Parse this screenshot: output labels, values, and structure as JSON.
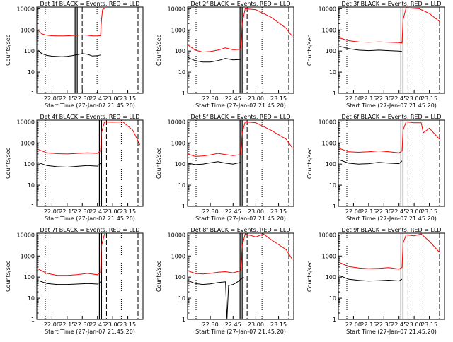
{
  "chart_data": [
    {
      "type": "line",
      "title": "Det 1f BLACK = Events, RED = LLD",
      "xlabel": "Start Time (27-Jan-07 21:45:20)",
      "ylabel": "Counts/sec",
      "xlim": [
        "21:45",
        "23:30"
      ],
      "ylim": [
        1,
        12000
      ],
      "yscale": "log",
      "ytick_labels": [
        "1",
        "10",
        "100",
        "1000",
        "10000"
      ],
      "xtick_labels": [
        "22:00",
        "22:15",
        "22:30",
        "22:45",
        "23:00",
        "23:15"
      ],
      "series": [
        {
          "name": "BLACK = Events",
          "color": "#000000",
          "x": [
            "21:46",
            "21:50",
            "21:55",
            "22:00",
            "22:05",
            "22:10",
            "22:15",
            "22:20",
            "22:25",
            "22:30",
            "22:35",
            "22:40",
            "22:45",
            "22:48"
          ],
          "values": [
            110,
            75,
            62,
            57,
            55,
            54,
            56,
            60,
            67,
            75,
            70,
            58,
            60,
            65
          ]
        },
        {
          "name": "RED = LLD",
          "color": "#ff0000",
          "x": [
            "21:46",
            "21:50",
            "21:55",
            "22:00",
            "22:05",
            "22:10",
            "22:15",
            "22:20",
            "22:25",
            "22:30",
            "22:35",
            "22:40",
            "22:45",
            "22:48",
            "22:49",
            "22:50",
            "22:53"
          ],
          "values": [
            1000,
            650,
            560,
            530,
            520,
            520,
            525,
            540,
            560,
            580,
            560,
            520,
            520,
            540,
            3000,
            9000,
            11000
          ]
        }
      ]
    },
    {
      "type": "line",
      "title": "Det 2f BLACK = Events, RED = LLD",
      "xlabel": "Start Time (27-Jan-07 21:45:20)",
      "ylabel": "Counts/sec",
      "xlim": [
        "22:15",
        "23:25"
      ],
      "ylim": [
        1,
        12000
      ],
      "yscale": "log",
      "ytick_labels": [
        "1",
        "10",
        "100",
        "1000",
        "10000"
      ],
      "xtick_labels": [
        "22:30",
        "22:45",
        "23:00",
        "23:15"
      ],
      "series": [
        {
          "name": "BLACK = Events",
          "color": "#000000",
          "x": [
            "22:15",
            "22:20",
            "22:25",
            "22:30",
            "22:35",
            "22:40",
            "22:45",
            "22:50"
          ],
          "values": [
            50,
            35,
            30,
            30,
            35,
            45,
            38,
            40
          ]
        },
        {
          "name": "RED = LLD",
          "color": "#ff0000",
          "x": [
            "22:15",
            "22:20",
            "22:25",
            "22:30",
            "22:35",
            "22:40",
            "22:45",
            "22:50",
            "22:51",
            "22:53",
            "23:00",
            "23:10",
            "23:20",
            "23:24"
          ],
          "values": [
            200,
            110,
            90,
            95,
            110,
            140,
            115,
            120,
            2000,
            10000,
            9000,
            4000,
            1200,
            500
          ]
        }
      ]
    },
    {
      "type": "line",
      "title": "Det 3f BLACK = Events, RED = LLD",
      "xlabel": "Start Time (27-Jan-07 21:45:20)",
      "ylabel": "Counts/sec",
      "xlim": [
        "21:45",
        "23:30"
      ],
      "ylim": [
        1,
        12000
      ],
      "yscale": "log",
      "ytick_labels": [
        "1",
        "10",
        "100",
        "1000",
        "10000"
      ],
      "xtick_labels": [
        "22:00",
        "22:15",
        "22:30",
        "22:45",
        "23:00",
        "23:15"
      ],
      "series": [
        {
          "name": "BLACK = Events",
          "color": "#000000",
          "x": [
            "21:46",
            "21:55",
            "22:05",
            "22:15",
            "22:25",
            "22:35",
            "22:45",
            "22:48"
          ],
          "values": [
            170,
            130,
            110,
            105,
            110,
            105,
            100,
            95
          ]
        },
        {
          "name": "RED = LLD",
          "color": "#ff0000",
          "x": [
            "21:46",
            "21:55",
            "22:05",
            "22:15",
            "22:25",
            "22:35",
            "22:45",
            "22:48",
            "22:49",
            "22:52",
            "23:05",
            "23:15",
            "23:25"
          ],
          "values": [
            420,
            310,
            270,
            260,
            270,
            260,
            250,
            240,
            3000,
            11000,
            10000,
            6000,
            2500
          ]
        }
      ]
    },
    {
      "type": "line",
      "title": "Det 4f BLACK = Events, RED = LLD",
      "xlabel": "Start Time (27-Jan-07 21:45:20)",
      "ylabel": "Counts/sec",
      "xlim": [
        "21:45",
        "23:30"
      ],
      "ylim": [
        1,
        12000
      ],
      "yscale": "log",
      "ytick_labels": [
        "1",
        "10",
        "100",
        "1000",
        "10000"
      ],
      "xtick_labels": [
        "22:00",
        "22:15",
        "22:30",
        "22:45",
        "23:00",
        "23:15"
      ],
      "series": [
        {
          "name": "BLACK = Events",
          "color": "#000000",
          "x": [
            "21:46",
            "21:55",
            "22:05",
            "22:15",
            "22:25",
            "22:35",
            "22:45",
            "22:48"
          ],
          "values": [
            120,
            85,
            75,
            72,
            78,
            85,
            80,
            110
          ]
        },
        {
          "name": "RED = LLD",
          "color": "#ff0000",
          "x": [
            "21:46",
            "21:55",
            "22:05",
            "22:15",
            "22:25",
            "22:35",
            "22:45",
            "22:48",
            "22:49",
            "22:52",
            "23:00",
            "23:10",
            "23:20",
            "23:27"
          ],
          "values": [
            500,
            340,
            310,
            300,
            320,
            340,
            320,
            420,
            3000,
            10000,
            9500,
            10000,
            4000,
            800
          ]
        }
      ]
    },
    {
      "type": "line",
      "title": "Det 5f BLACK = Events, RED = LLD",
      "xlabel": "Start Time (27-Jan-07 21:45:20)",
      "ylabel": "Counts/sec",
      "xlim": [
        "22:15",
        "23:25"
      ],
      "ylim": [
        1,
        12000
      ],
      "yscale": "log",
      "ytick_labels": [
        "1",
        "10",
        "100",
        "1000",
        "10000"
      ],
      "xtick_labels": [
        "22:30",
        "22:45",
        "23:00",
        "23:15"
      ],
      "series": [
        {
          "name": "BLACK = Events",
          "color": "#000000",
          "x": [
            "22:15",
            "22:20",
            "22:25",
            "22:30",
            "22:35",
            "22:40",
            "22:45",
            "22:50"
          ],
          "values": [
            110,
            95,
            100,
            115,
            130,
            110,
            100,
            120
          ]
        },
        {
          "name": "RED = LLD",
          "color": "#ff0000",
          "x": [
            "22:15",
            "22:20",
            "22:25",
            "22:30",
            "22:35",
            "22:40",
            "22:45",
            "22:50",
            "22:51",
            "22:53",
            "23:00",
            "23:10",
            "23:20",
            "23:24"
          ],
          "values": [
            300,
            230,
            240,
            270,
            320,
            280,
            250,
            280,
            3000,
            10000,
            9000,
            4000,
            1500,
            600
          ]
        }
      ]
    },
    {
      "type": "line",
      "title": "Det 6f BLACK = Events, RED = LLD",
      "xlabel": "Start Time (27-Jan-07 21:45:20)",
      "ylabel": "Counts/sec",
      "xlim": [
        "21:45",
        "23:30"
      ],
      "ylim": [
        1,
        12000
      ],
      "yscale": "log",
      "ytick_labels": [
        "1",
        "10",
        "100",
        "1000",
        "10000"
      ],
      "xtick_labels": [
        "22:00",
        "22:15",
        "22:30",
        "22:45",
        "23:00",
        "23:15"
      ],
      "series": [
        {
          "name": "BLACK = Events",
          "color": "#000000",
          "x": [
            "21:46",
            "21:55",
            "22:05",
            "22:15",
            "22:25",
            "22:35",
            "22:45",
            "22:48"
          ],
          "values": [
            160,
            110,
            100,
            105,
            120,
            110,
            105,
            140
          ]
        },
        {
          "name": "RED = LLD",
          "color": "#ff0000",
          "x": [
            "21:46",
            "21:55",
            "22:05",
            "22:15",
            "22:25",
            "22:35",
            "22:45",
            "22:48",
            "22:49",
            "22:52",
            "23:00",
            "23:07",
            "23:09",
            "23:15",
            "23:25"
          ],
          "values": [
            550,
            380,
            360,
            380,
            420,
            380,
            340,
            420,
            4000,
            10000,
            9000,
            9000,
            3000,
            5000,
            1500
          ]
        }
      ]
    },
    {
      "type": "line",
      "title": "Det 7f BLACK = Events, RED = LLD",
      "xlabel": "Start Time (27-Jan-07 21:45:20)",
      "ylabel": "Counts/sec",
      "xlim": [
        "21:45",
        "23:30"
      ],
      "ylim": [
        1,
        12000
      ],
      "yscale": "log",
      "ytick_labels": [
        "1",
        "10",
        "100",
        "1000",
        "10000"
      ],
      "xtick_labels": [
        "22:00",
        "22:15",
        "22:30",
        "22:45",
        "23:00",
        "23:15"
      ],
      "series": [
        {
          "name": "BLACK = Events",
          "color": "#000000",
          "x": [
            "21:46",
            "21:55",
            "22:05",
            "22:15",
            "22:25",
            "22:35",
            "22:45",
            "22:48"
          ],
          "values": [
            70,
            50,
            45,
            45,
            47,
            50,
            47,
            60
          ]
        },
        {
          "name": "RED = LLD",
          "color": "#ff0000",
          "x": [
            "21:46",
            "21:55",
            "22:05",
            "22:15",
            "22:25",
            "22:35",
            "22:45",
            "22:48",
            "22:49",
            "22:52"
          ],
          "values": [
            250,
            150,
            120,
            120,
            130,
            150,
            130,
            160,
            3000,
            11000
          ]
        }
      ]
    },
    {
      "type": "line",
      "title": "Det 8f BLACK = Events, RED = LLD",
      "xlabel": "Start Time (27-Jan-07 21:45:20)",
      "ylabel": "Counts/sec",
      "xlim": [
        "22:15",
        "23:25"
      ],
      "ylim": [
        1,
        12000
      ],
      "yscale": "log",
      "ytick_labels": [
        "1",
        "10",
        "100",
        "1000",
        "10000"
      ],
      "xtick_labels": [
        "22:30",
        "22:45",
        "23:00",
        "23:15"
      ],
      "series": [
        {
          "name": "BLACK = Events",
          "color": "#000000",
          "x": [
            "22:15",
            "22:20",
            "22:25",
            "22:30",
            "22:35",
            "22:40",
            "22:41",
            "22:42",
            "22:45",
            "22:48",
            "22:50",
            "22:52"
          ],
          "values": [
            70,
            50,
            45,
            48,
            55,
            60,
            1,
            40,
            45,
            60,
            80,
            100
          ]
        },
        {
          "name": "RED = LLD",
          "color": "#ff0000",
          "x": [
            "22:15",
            "22:20",
            "22:25",
            "22:30",
            "22:35",
            "22:40",
            "22:45",
            "22:50",
            "22:51",
            "22:53",
            "23:00",
            "23:05",
            "23:10",
            "23:20",
            "23:24"
          ],
          "values": [
            200,
            150,
            140,
            150,
            170,
            180,
            160,
            200,
            3000,
            11000,
            8000,
            11000,
            6000,
            2000,
            700
          ]
        }
      ]
    },
    {
      "type": "line",
      "title": "Det 9f BLACK = Events, RED = LLD",
      "xlabel": "Start Time (27-Jan-07 21:45:20)",
      "ylabel": "Counts/sec",
      "xlim": [
        "21:45",
        "23:30"
      ],
      "ylim": [
        1,
        12000
      ],
      "yscale": "log",
      "ytick_labels": [
        "1",
        "10",
        "100",
        "1000",
        "10000"
      ],
      "xtick_labels": [
        "22:00",
        "22:15",
        "22:30",
        "22:45",
        "23:00",
        "23:15"
      ],
      "series": [
        {
          "name": "BLACK = Events",
          "color": "#000000",
          "x": [
            "21:46",
            "21:55",
            "22:05",
            "22:15",
            "22:25",
            "22:35",
            "22:45",
            "22:48"
          ],
          "values": [
            120,
            80,
            70,
            65,
            68,
            72,
            66,
            80
          ]
        },
        {
          "name": "RED = LLD",
          "color": "#ff0000",
          "x": [
            "21:46",
            "21:55",
            "22:05",
            "22:15",
            "22:25",
            "22:35",
            "22:45",
            "22:48",
            "22:49",
            "22:52",
            "23:00",
            "23:07",
            "23:15",
            "23:25"
          ],
          "values": [
            500,
            320,
            270,
            250,
            260,
            280,
            240,
            290,
            4000,
            10000,
            9000,
            11000,
            5000,
            1500
          ]
        }
      ]
    }
  ]
}
